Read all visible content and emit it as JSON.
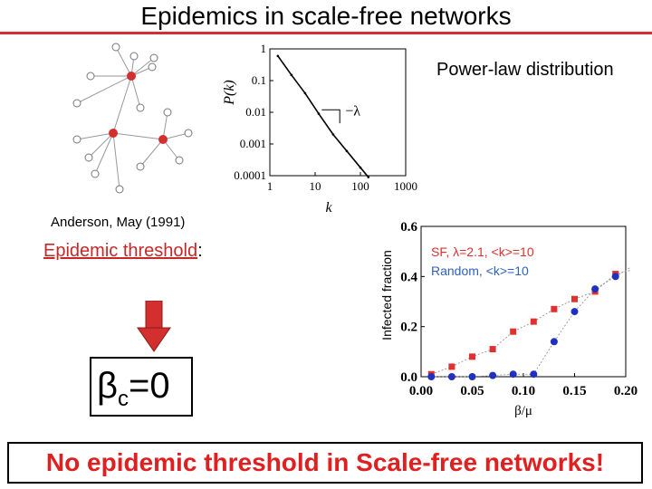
{
  "title": "Epidemics in scale-free networks",
  "powerlaw_label": "Power-law distribution",
  "citation": "Anderson, May (1991)",
  "threshold": {
    "label": "Epidemic threshold",
    "suffix": ":"
  },
  "beta": {
    "symbol": "β",
    "subscript": "c",
    "value": "=0"
  },
  "conclusion": "No epidemic threshold in Scale-free networks!",
  "colors": {
    "accent": "#d32f2f",
    "sf": "#e03030",
    "random": "#2030c0",
    "arrow": "#d32f2f"
  },
  "icons": {
    "arrow": "down-arrow-icon",
    "network": "network-graph-icon"
  },
  "chart_data": [
    {
      "type": "line",
      "xlabel": "k",
      "ylabel": "P(k)",
      "xscale": "log",
      "yscale": "log",
      "x_ticks": [
        "1",
        "10",
        "100",
        "1000"
      ],
      "y_ticks": [
        "1",
        "0.1",
        "0.01",
        "0.001",
        "0.0001"
      ],
      "slope_label": "−λ",
      "xlim": [
        1,
        1000
      ],
      "ylim": [
        0.0001,
        1
      ],
      "series": [
        {
          "x": [
            1.5,
            3,
            6,
            12,
            25,
            50,
            100,
            150
          ],
          "y": [
            0.6,
            0.15,
            0.04,
            0.009,
            0.002,
            0.0006,
            0.00018,
            9e-05
          ]
        }
      ]
    },
    {
      "type": "line",
      "xlabel": "β/μ",
      "ylabel": "Infected fraction",
      "x_ticks": [
        "0.00",
        "0.05",
        "0.10",
        "0.15",
        "0.20"
      ],
      "y_ticks": [
        "0.0",
        "0.2",
        "0.4",
        "0.6"
      ],
      "xlim": [
        0,
        0.2
      ],
      "ylim": [
        0,
        0.6
      ],
      "legend_position": "top-left",
      "series": [
        {
          "name": "SF, λ=2.1, <k>=10",
          "marker": "square",
          "color": "#e03030",
          "x": [
            0.01,
            0.03,
            0.05,
            0.07,
            0.09,
            0.11,
            0.13,
            0.15,
            0.17,
            0.19,
            0.21
          ],
          "y": [
            0.01,
            0.04,
            0.08,
            0.11,
            0.18,
            0.22,
            0.27,
            0.31,
            0.34,
            0.41,
            0.43
          ]
        },
        {
          "name": "Random, <k>=10",
          "marker": "circle",
          "color": "#2030c0",
          "x": [
            0.01,
            0.03,
            0.05,
            0.07,
            0.09,
            0.11,
            0.13,
            0.15,
            0.17,
            0.19,
            0.21
          ],
          "y": [
            0.0,
            0.0,
            0.0,
            0.005,
            0.01,
            0.01,
            0.14,
            0.26,
            0.35,
            0.4,
            0.45
          ]
        }
      ]
    }
  ]
}
